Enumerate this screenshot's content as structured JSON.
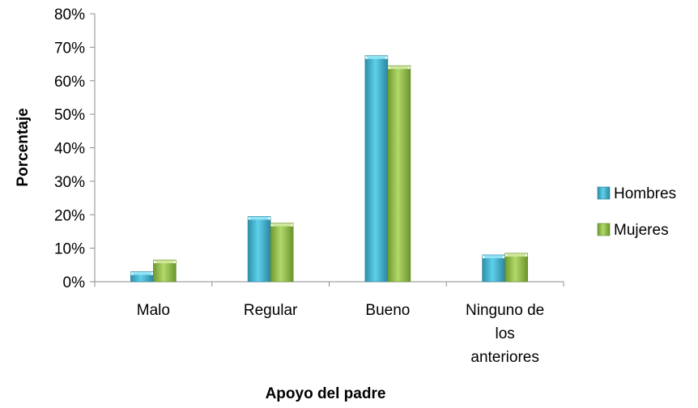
{
  "chart_data": {
    "type": "bar",
    "title": "",
    "xlabel": "Apoyo del padre",
    "ylabel": "Porcentaje",
    "categories": [
      [
        "Malo"
      ],
      [
        "Regular"
      ],
      [
        "Bueno"
      ],
      [
        "Ninguno de",
        "los",
        "anteriores"
      ]
    ],
    "ylim": [
      0,
      80
    ],
    "yticks": [
      "0%",
      "10%",
      "20%",
      "30%",
      "40%",
      "50%",
      "60%",
      "70%",
      "80%"
    ],
    "series": [
      {
        "name": "Hombres",
        "color": "#3cb4d2",
        "values": [
          3,
          19.5,
          67.5,
          8
        ]
      },
      {
        "name": "Mujeres",
        "color": "#92be48",
        "values": [
          6.5,
          17.5,
          64.5,
          8.5
        ]
      }
    ],
    "legend": "right",
    "grid": false
  }
}
